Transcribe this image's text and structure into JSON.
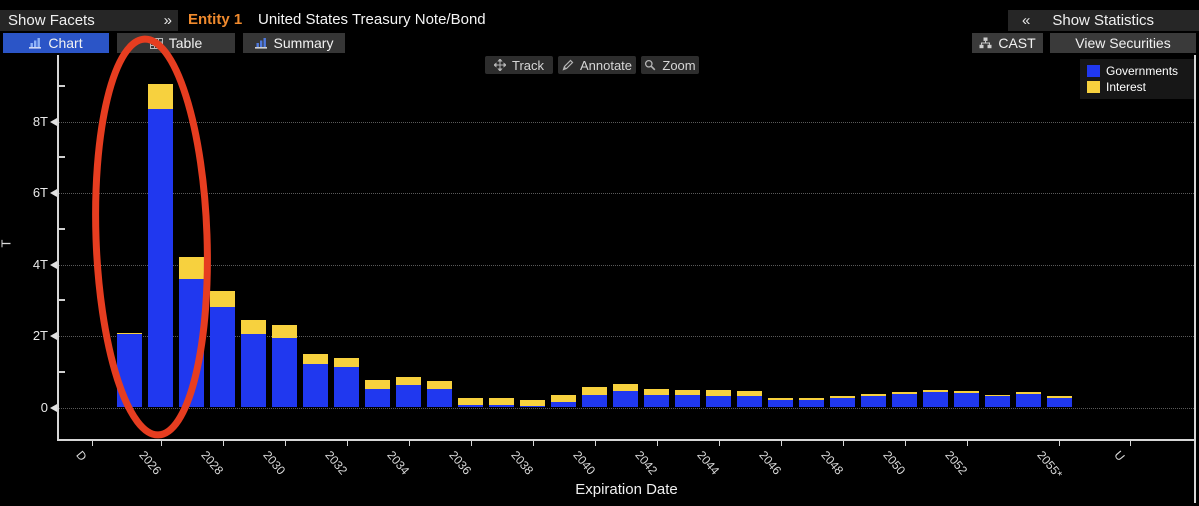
{
  "header": {
    "show_facets": "Show Facets",
    "facets_collapse_icon": "»",
    "entity_label": "Entity 1",
    "security_title": "United States Treasury Note/Bond",
    "stats_expand_icon": "«",
    "show_statistics": "Show Statistics"
  },
  "tabs": [
    {
      "label": "Chart",
      "active": true
    },
    {
      "label": "Table",
      "active": false
    },
    {
      "label": "Summary",
      "active": false
    }
  ],
  "actions": {
    "cast": "CAST",
    "view_securities": "View Securities"
  },
  "chart_toolbar": {
    "track": "Track",
    "annotate": "Annotate",
    "zoom": "Zoom"
  },
  "legend": [
    {
      "label": "Governments",
      "color": "#2038ef"
    },
    {
      "label": "Interest",
      "color": "#f7d13e"
    }
  ],
  "colors": {
    "background": "#000000",
    "governments_bar": "#2038ef",
    "interest_bar": "#f7d13e",
    "active_tab": "#2b55c7",
    "entity_orange": "#f08a2d",
    "annotation_red": "#e63d20"
  },
  "chart_data": {
    "type": "bar",
    "stacked": true,
    "title": "",
    "xlabel": "Expiration Date",
    "ylabel": "T",
    "ylim": [
      0,
      9.6
    ],
    "grid": "horizontal-dotted",
    "legend_position": "top-right",
    "x": [
      2025,
      2026,
      2027,
      2028,
      2029,
      2030,
      2031,
      2032,
      2033,
      2034,
      2035,
      2036,
      2037,
      2038,
      2039,
      2040,
      2041,
      2042,
      2043,
      2044,
      2045,
      2046,
      2047,
      2048,
      2049,
      2050,
      2051,
      2052,
      2053,
      2054,
      2055
    ],
    "series": [
      {
        "name": "Governments",
        "values": [
          2.05,
          8.35,
          3.6,
          2.82,
          2.05,
          1.95,
          1.21,
          1.12,
          0.51,
          0.62,
          0.51,
          0.06,
          0.06,
          0.04,
          0.15,
          0.36,
          0.45,
          0.36,
          0.35,
          0.32,
          0.31,
          0.2,
          0.2,
          0.26,
          0.31,
          0.38,
          0.44,
          0.4,
          0.32,
          0.38,
          0.27
        ]
      },
      {
        "name": "Interest",
        "values": [
          0.04,
          0.7,
          0.6,
          0.45,
          0.4,
          0.35,
          0.29,
          0.26,
          0.27,
          0.23,
          0.23,
          0.2,
          0.2,
          0.18,
          0.21,
          0.21,
          0.22,
          0.17,
          0.15,
          0.16,
          0.14,
          0.06,
          0.06,
          0.05,
          0.06,
          0.05,
          0.06,
          0.05,
          0.04,
          0.05,
          0.04
        ]
      }
    ],
    "yticks": [
      {
        "label": "0",
        "value": 0
      },
      {
        "label": "2T",
        "value": 2
      },
      {
        "label": "4T",
        "value": 4
      },
      {
        "label": "6T",
        "value": 6
      },
      {
        "label": "8T",
        "value": 8
      }
    ],
    "xtick_labels": [
      "D",
      "2026",
      "2028",
      "2030",
      "2032",
      "2034",
      "2036",
      "2038",
      "2040",
      "2042",
      "2044",
      "2046",
      "2048",
      "2050",
      "2052",
      "2055*",
      "U"
    ],
    "annotation": {
      "shape": "ellipse",
      "color": "#e63d20",
      "highlights": "2025 and 2026 bars"
    }
  }
}
